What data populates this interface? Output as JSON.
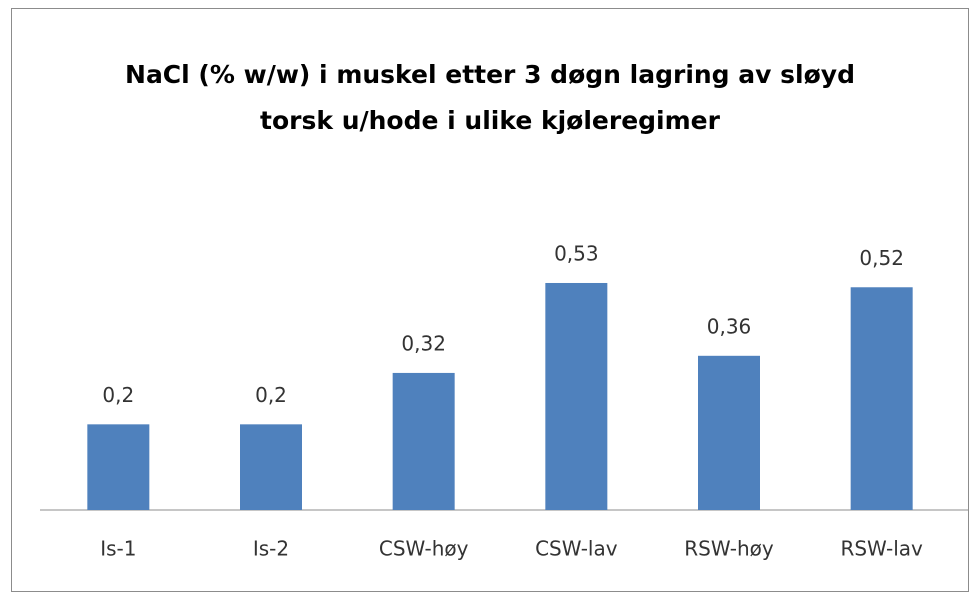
{
  "chart_data": {
    "type": "bar",
    "title": "NaCl (% w/w) i muskel etter 3 døgn lagring av sløyd torsk u/hode i ulike kjøleregimer",
    "categories": [
      "Is-1",
      "Is-2",
      "CSW-høy",
      "CSW-lav",
      "RSW-høy",
      "RSW-lav"
    ],
    "values": [
      0.2,
      0.2,
      0.32,
      0.53,
      0.36,
      0.52
    ],
    "value_labels": [
      "0,2",
      "0,2",
      "0,32",
      "0,53",
      "0,36",
      "0,52"
    ],
    "color": "#4f81bd",
    "ylim": [
      0,
      0.6
    ]
  }
}
